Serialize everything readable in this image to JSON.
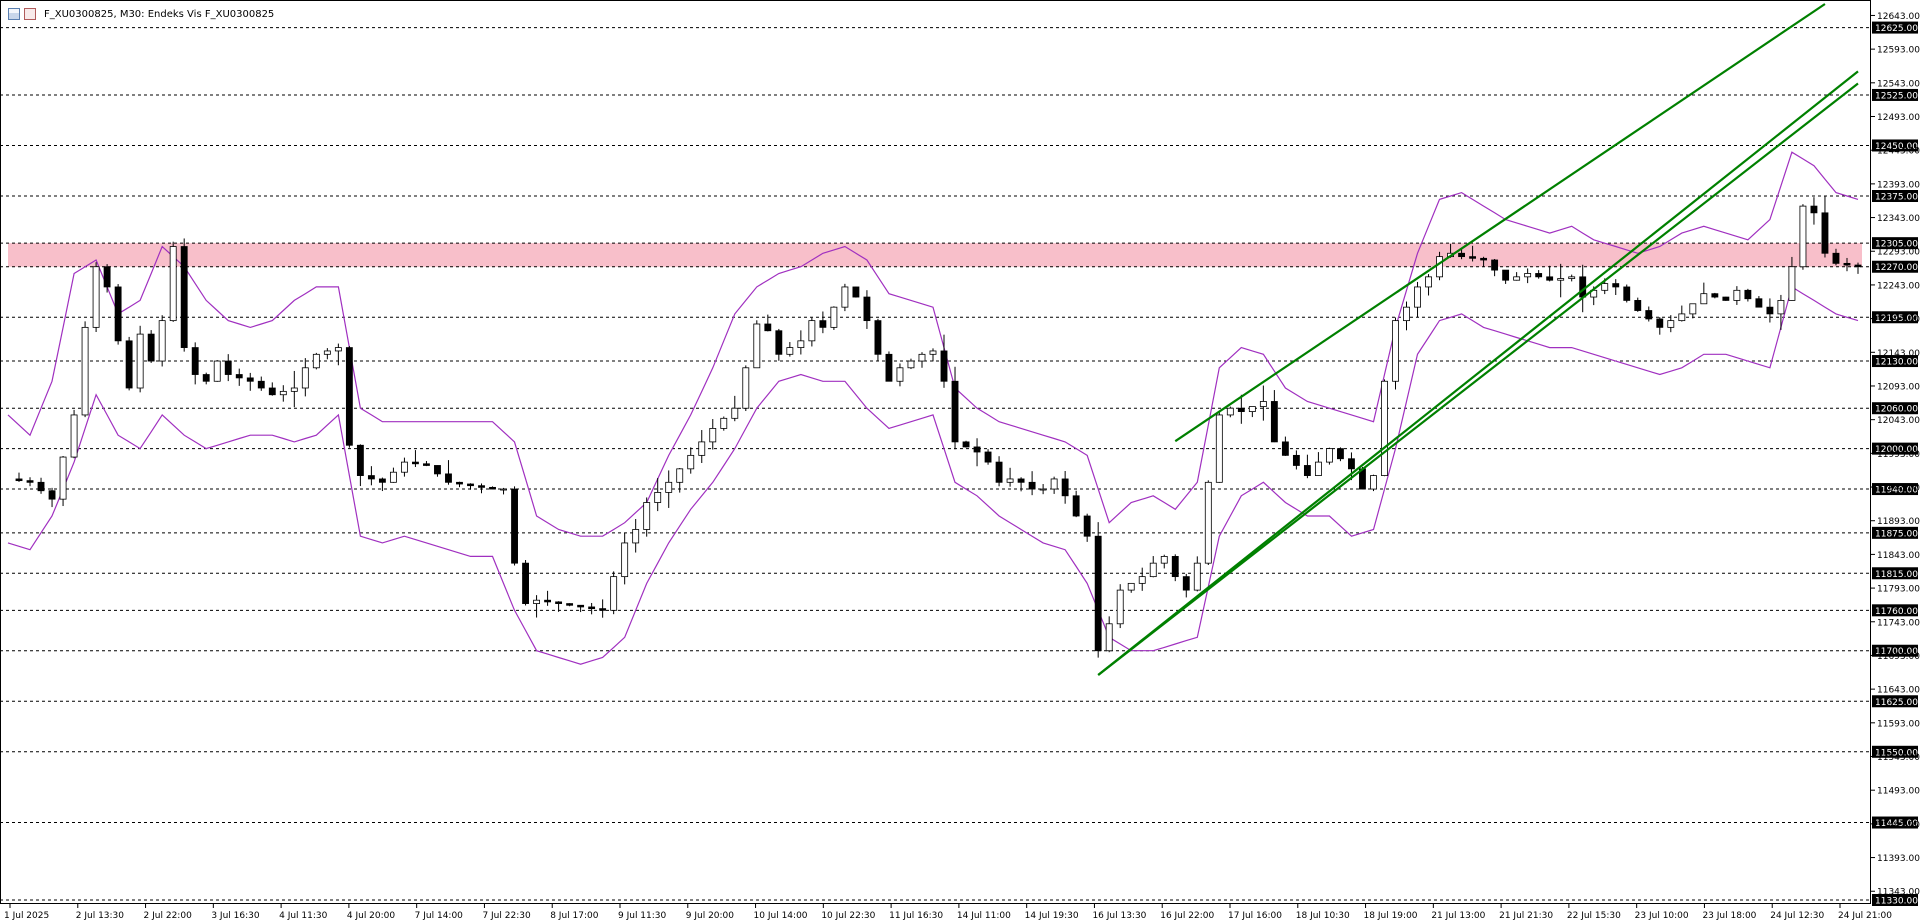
{
  "header": {
    "title": "F_XU0300825, M30:  Endeks Vis F_XU0300825"
  },
  "colors": {
    "background": "#ffffff",
    "grid_line": "#000000",
    "resistance_zone": "#f7b8c4",
    "channel": "#008000",
    "bollinger": "#a030c0",
    "candle": "#000000"
  },
  "chart_data": {
    "type": "candlestick",
    "symbol": "F_XU0300825",
    "timeframe": "M30",
    "ylim": [
      11330,
      12660
    ],
    "price_axis_ticks": [
      "12643.00",
      "12593.00",
      "12543.00",
      "12493.00",
      "12443.00",
      "12393.00",
      "12343.00",
      "12293.00",
      "12243.00",
      "12193.00",
      "12143.00",
      "12093.00",
      "12043.00",
      "11993.00",
      "11943.00",
      "11893.00",
      "11843.00",
      "11793.00",
      "11743.00",
      "11693.00",
      "11643.00",
      "11593.00",
      "11543.00",
      "11493.00",
      "11443.00",
      "11393.00",
      "11343.00"
    ],
    "levels": [
      "12625.00",
      "12525.00",
      "12450.00",
      "12375.00",
      "12305.00",
      "12270.00",
      "12195.00",
      "12130.00",
      "12060.00",
      "12000.00",
      "11940.00",
      "11875.00",
      "11815.00",
      "11760.00",
      "11700.00",
      "11625.00",
      "11550.00",
      "11445.00",
      "11330.00"
    ],
    "time_axis_labels": [
      "1 Jul 2025",
      "2 Jul 13:30",
      "2 Jul 22:00",
      "3 Jul 16:30",
      "4 Jul 11:30",
      "4 Jul 20:00",
      "7 Jul 14:00",
      "7 Jul 22:30",
      "8 Jul 17:00",
      "9 Jul 11:30",
      "9 Jul 20:00",
      "10 Jul 14:00",
      "10 Jul 22:30",
      "11 Jul 16:30",
      "14 Jul 11:00",
      "14 Jul 19:30",
      "16 Jul 13:30",
      "16 Jul 22:00",
      "17 Jul 16:00",
      "18 Jul 10:30",
      "18 Jul 19:00",
      "21 Jul 13:00",
      "21 Jul 21:30",
      "22 Jul 15:30",
      "23 Jul 10:00",
      "23 Jul 18:00",
      "24 Jul 12:30",
      "24 Jul 21:00"
    ],
    "resistance_zone": [
      12270,
      12305
    ],
    "close_path": [
      [
        0,
        11955
      ],
      [
        2,
        11950
      ],
      [
        4,
        11925
      ],
      [
        6,
        12050
      ],
      [
        7,
        12180
      ],
      [
        8,
        12270
      ],
      [
        9,
        12240
      ],
      [
        10,
        12160
      ],
      [
        11,
        12090
      ],
      [
        12,
        12170
      ],
      [
        13,
        12130
      ],
      [
        14,
        12190
      ],
      [
        15,
        12300
      ],
      [
        16,
        12150
      ],
      [
        17,
        12110
      ],
      [
        18,
        12100
      ],
      [
        19,
        12130
      ],
      [
        20,
        12110
      ],
      [
        22,
        12100
      ],
      [
        24,
        12080
      ],
      [
        26,
        12090
      ],
      [
        27,
        12120
      ],
      [
        28,
        12140
      ],
      [
        29,
        12145
      ],
      [
        30,
        12150
      ],
      [
        31,
        12005
      ],
      [
        32,
        11960
      ],
      [
        34,
        11950
      ],
      [
        36,
        11980
      ],
      [
        38,
        11975
      ],
      [
        40,
        11950
      ],
      [
        42,
        11945
      ],
      [
        44,
        11940
      ],
      [
        45,
        11940
      ],
      [
        46,
        11830
      ],
      [
        47,
        11770
      ],
      [
        48,
        11775
      ],
      [
        50,
        11770
      ],
      [
        52,
        11765
      ],
      [
        54,
        11760
      ],
      [
        55,
        11810
      ],
      [
        56,
        11860
      ],
      [
        57,
        11880
      ],
      [
        58,
        11920
      ],
      [
        60,
        11950
      ],
      [
        62,
        11990
      ],
      [
        64,
        12030
      ],
      [
        66,
        12060
      ],
      [
        67,
        12120
      ],
      [
        68,
        12185
      ],
      [
        69,
        12175
      ],
      [
        70,
        12140
      ],
      [
        72,
        12160
      ],
      [
        73,
        12190
      ],
      [
        74,
        12180
      ],
      [
        75,
        12210
      ],
      [
        76,
        12240
      ],
      [
        77,
        12225
      ],
      [
        78,
        12190
      ],
      [
        79,
        12140
      ],
      [
        80,
        12100
      ],
      [
        81,
        12120
      ],
      [
        82,
        12130
      ],
      [
        83,
        12140
      ],
      [
        84,
        12145
      ],
      [
        85,
        12100
      ],
      [
        86,
        12010
      ],
      [
        88,
        11995
      ],
      [
        89,
        11980
      ],
      [
        90,
        11950
      ],
      [
        91,
        11955
      ],
      [
        92,
        11950
      ],
      [
        93,
        11940
      ],
      [
        94,
        11940
      ],
      [
        95,
        11955
      ],
      [
        96,
        11930
      ],
      [
        97,
        11900
      ],
      [
        98,
        11870
      ],
      [
        99,
        11700
      ],
      [
        100,
        11740
      ],
      [
        101,
        11790
      ],
      [
        102,
        11800
      ],
      [
        103,
        11810
      ],
      [
        104,
        11830
      ],
      [
        105,
        11840
      ],
      [
        106,
        11810
      ],
      [
        107,
        11790
      ],
      [
        108,
        11830
      ],
      [
        109,
        11950
      ],
      [
        110,
        12050
      ],
      [
        111,
        12060
      ],
      [
        112,
        12055
      ],
      [
        114,
        12070
      ],
      [
        115,
        12010
      ],
      [
        116,
        11990
      ],
      [
        118,
        11960
      ],
      [
        120,
        12000
      ],
      [
        122,
        11970
      ],
      [
        123,
        11940
      ],
      [
        124,
        11960
      ],
      [
        125,
        12100
      ],
      [
        126,
        12190
      ],
      [
        127,
        12210
      ],
      [
        128,
        12240
      ],
      [
        129,
        12255
      ],
      [
        130,
        12285
      ],
      [
        131,
        12290
      ],
      [
        132,
        12285
      ],
      [
        134,
        12280
      ],
      [
        136,
        12250
      ],
      [
        138,
        12260
      ],
      [
        140,
        12250
      ],
      [
        142,
        12255
      ],
      [
        143,
        12225
      ],
      [
        145,
        12245
      ],
      [
        146,
        12240
      ],
      [
        147,
        12220
      ],
      [
        148,
        12205
      ],
      [
        150,
        12180
      ],
      [
        152,
        12200
      ],
      [
        154,
        12230
      ],
      [
        156,
        12220
      ],
      [
        157,
        12235
      ],
      [
        159,
        12210
      ],
      [
        160,
        12200
      ],
      [
        161,
        12220
      ],
      [
        162,
        12270
      ],
      [
        163,
        12360
      ],
      [
        164,
        12350
      ],
      [
        165,
        12290
      ],
      [
        166,
        12275
      ],
      [
        168,
        12270
      ]
    ],
    "bollinger_upper_path": [
      [
        0,
        12050
      ],
      [
        2,
        12020
      ],
      [
        4,
        12100
      ],
      [
        6,
        12260
      ],
      [
        8,
        12280
      ],
      [
        10,
        12200
      ],
      [
        12,
        12220
      ],
      [
        14,
        12300
      ],
      [
        16,
        12270
      ],
      [
        18,
        12220
      ],
      [
        20,
        12190
      ],
      [
        22,
        12180
      ],
      [
        24,
        12190
      ],
      [
        26,
        12220
      ],
      [
        28,
        12240
      ],
      [
        30,
        12240
      ],
      [
        32,
        12060
      ],
      [
        34,
        12040
      ],
      [
        36,
        12040
      ],
      [
        38,
        12040
      ],
      [
        40,
        12040
      ],
      [
        42,
        12040
      ],
      [
        44,
        12040
      ],
      [
        46,
        12010
      ],
      [
        48,
        11900
      ],
      [
        50,
        11880
      ],
      [
        52,
        11870
      ],
      [
        54,
        11870
      ],
      [
        56,
        11890
      ],
      [
        58,
        11920
      ],
      [
        60,
        11990
      ],
      [
        62,
        12050
      ],
      [
        64,
        12120
      ],
      [
        66,
        12200
      ],
      [
        68,
        12240
      ],
      [
        70,
        12260
      ],
      [
        72,
        12270
      ],
      [
        74,
        12290
      ],
      [
        76,
        12300
      ],
      [
        78,
        12280
      ],
      [
        80,
        12230
      ],
      [
        82,
        12220
      ],
      [
        84,
        12210
      ],
      [
        86,
        12090
      ],
      [
        88,
        12060
      ],
      [
        90,
        12040
      ],
      [
        92,
        12030
      ],
      [
        94,
        12020
      ],
      [
        96,
        12010
      ],
      [
        98,
        11990
      ],
      [
        100,
        11890
      ],
      [
        102,
        11920
      ],
      [
        104,
        11930
      ],
      [
        106,
        11910
      ],
      [
        108,
        11950
      ],
      [
        110,
        12120
      ],
      [
        112,
        12150
      ],
      [
        114,
        12140
      ],
      [
        116,
        12090
      ],
      [
        118,
        12070
      ],
      [
        120,
        12060
      ],
      [
        122,
        12050
      ],
      [
        124,
        12040
      ],
      [
        126,
        12180
      ],
      [
        128,
        12290
      ],
      [
        130,
        12370
      ],
      [
        132,
        12380
      ],
      [
        134,
        12360
      ],
      [
        136,
        12340
      ],
      [
        138,
        12330
      ],
      [
        140,
        12320
      ],
      [
        142,
        12330
      ],
      [
        144,
        12310
      ],
      [
        146,
        12300
      ],
      [
        148,
        12290
      ],
      [
        150,
        12300
      ],
      [
        152,
        12320
      ],
      [
        154,
        12330
      ],
      [
        156,
        12320
      ],
      [
        158,
        12310
      ],
      [
        160,
        12340
      ],
      [
        162,
        12440
      ],
      [
        164,
        12420
      ],
      [
        166,
        12380
      ],
      [
        168,
        12370
      ]
    ],
    "bollinger_lower_path": [
      [
        0,
        11860
      ],
      [
        2,
        11850
      ],
      [
        4,
        11900
      ],
      [
        6,
        11980
      ],
      [
        8,
        12080
      ],
      [
        10,
        12020
      ],
      [
        12,
        12000
      ],
      [
        14,
        12050
      ],
      [
        16,
        12020
      ],
      [
        18,
        12000
      ],
      [
        20,
        12010
      ],
      [
        22,
        12020
      ],
      [
        24,
        12020
      ],
      [
        26,
        12010
      ],
      [
        28,
        12020
      ],
      [
        30,
        12050
      ],
      [
        32,
        11870
      ],
      [
        34,
        11860
      ],
      [
        36,
        11870
      ],
      [
        38,
        11860
      ],
      [
        40,
        11850
      ],
      [
        42,
        11840
      ],
      [
        44,
        11840
      ],
      [
        46,
        11760
      ],
      [
        48,
        11700
      ],
      [
        50,
        11690
      ],
      [
        52,
        11680
      ],
      [
        54,
        11690
      ],
      [
        56,
        11720
      ],
      [
        58,
        11800
      ],
      [
        60,
        11860
      ],
      [
        62,
        11910
      ],
      [
        64,
        11950
      ],
      [
        66,
        12000
      ],
      [
        68,
        12060
      ],
      [
        70,
        12100
      ],
      [
        72,
        12110
      ],
      [
        74,
        12100
      ],
      [
        76,
        12100
      ],
      [
        78,
        12060
      ],
      [
        80,
        12030
      ],
      [
        82,
        12040
      ],
      [
        84,
        12050
      ],
      [
        86,
        11950
      ],
      [
        88,
        11930
      ],
      [
        90,
        11900
      ],
      [
        92,
        11880
      ],
      [
        94,
        11860
      ],
      [
        96,
        11850
      ],
      [
        98,
        11800
      ],
      [
        100,
        11720
      ],
      [
        102,
        11700
      ],
      [
        104,
        11700
      ],
      [
        106,
        11710
      ],
      [
        108,
        11720
      ],
      [
        110,
        11870
      ],
      [
        112,
        11930
      ],
      [
        114,
        11950
      ],
      [
        116,
        11920
      ],
      [
        118,
        11900
      ],
      [
        120,
        11900
      ],
      [
        122,
        11870
      ],
      [
        124,
        11880
      ],
      [
        126,
        12000
      ],
      [
        128,
        12140
      ],
      [
        130,
        12190
      ],
      [
        132,
        12200
      ],
      [
        134,
        12180
      ],
      [
        136,
        12170
      ],
      [
        138,
        12160
      ],
      [
        140,
        12150
      ],
      [
        142,
        12150
      ],
      [
        144,
        12140
      ],
      [
        146,
        12130
      ],
      [
        148,
        12120
      ],
      [
        150,
        12110
      ],
      [
        152,
        12120
      ],
      [
        154,
        12140
      ],
      [
        156,
        12140
      ],
      [
        158,
        12130
      ],
      [
        160,
        12120
      ],
      [
        162,
        12240
      ],
      [
        164,
        12220
      ],
      [
        166,
        12200
      ],
      [
        168,
        12190
      ]
    ],
    "channel_lines": [
      {
        "x1": 99,
        "y1": 11664,
        "x2": 168,
        "y2": 12542
      },
      {
        "x1": 106,
        "y1": 12011,
        "x2": 165,
        "y2": 12660
      }
    ]
  }
}
